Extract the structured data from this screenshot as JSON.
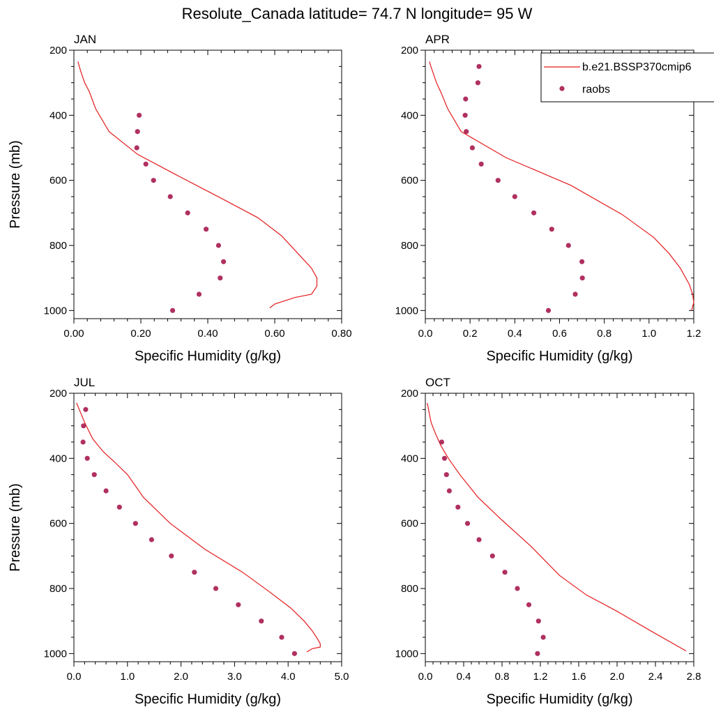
{
  "title": "Resolute_Canada  latitude= 74.7 N longitude= 95 W",
  "legend": {
    "model_label": "b.e21.BSSP370cmip6",
    "obs_label": "raobs",
    "model_color": "#e41a1c",
    "obs_color": "#b03060"
  },
  "chart_data": [
    {
      "type": "line",
      "panel": "JAN",
      "xlabel": "Specific Humidity (g/kg)",
      "ylabel": "Pressure (mb)",
      "xlim": [
        0,
        0.8
      ],
      "ylim": [
        200,
        1025
      ],
      "y_reversed": true,
      "xticks": [
        0,
        0.2,
        0.4,
        0.6,
        0.8
      ],
      "xtick_labels": [
        "0.00",
        "0.20",
        "0.40",
        "0.60",
        "0.80"
      ],
      "yticks": [
        200,
        400,
        600,
        800,
        1000
      ],
      "ytick_labels": [
        "200",
        "400",
        "600",
        "800",
        "1000"
      ],
      "series": [
        {
          "name": "b.e21.BSSP370cmip6",
          "kind": "line",
          "x": [
            0.012,
            0.016,
            0.022,
            0.032,
            0.045,
            0.065,
            0.105,
            0.19,
            0.3,
            0.44,
            0.55,
            0.62,
            0.665,
            0.71,
            0.726,
            0.726,
            0.71,
            0.66,
            0.6,
            0.585
          ],
          "y": [
            235,
            250,
            270,
            300,
            325,
            380,
            450,
            520,
            580,
            655,
            715,
            770,
            820,
            870,
            900,
            925,
            950,
            960,
            980,
            992
          ]
        },
        {
          "name": "raobs",
          "kind": "scatter",
          "x": [
            0.195,
            0.19,
            0.188,
            0.215,
            0.238,
            0.288,
            0.34,
            0.395,
            0.432,
            0.447,
            0.437,
            0.374,
            0.295
          ],
          "y": [
            400,
            450,
            500,
            550,
            600,
            650,
            700,
            750,
            800,
            850,
            900,
            950,
            1000
          ]
        }
      ]
    },
    {
      "type": "line",
      "panel": "APR",
      "xlabel": "Specific Humidity (g/kg)",
      "ylabel": "",
      "xlim": [
        0,
        1.2
      ],
      "ylim": [
        200,
        1025
      ],
      "y_reversed": true,
      "xticks": [
        0,
        0.2,
        0.4,
        0.6,
        0.8,
        1.0,
        1.2
      ],
      "xtick_labels": [
        "0.0",
        "0.2",
        "0.4",
        "0.6",
        "0.8",
        "1.0",
        "1.2"
      ],
      "yticks": [
        200,
        400,
        600,
        800,
        1000
      ],
      "ytick_labels": [
        "200",
        "400",
        "600",
        "800",
        "1000"
      ],
      "series": [
        {
          "name": "b.e21.BSSP370cmip6",
          "kind": "line",
          "x": [
            0.018,
            0.025,
            0.035,
            0.05,
            0.07,
            0.1,
            0.16,
            0.36,
            0.65,
            0.88,
            1.02,
            1.09,
            1.14,
            1.18,
            1.195,
            1.2,
            1.19
          ],
          "y": [
            235,
            250,
            270,
            300,
            330,
            380,
            450,
            530,
            615,
            705,
            775,
            825,
            870,
            920,
            950,
            975,
            1000
          ]
        },
        {
          "name": "raobs",
          "kind": "scatter",
          "x": [
            0.24,
            0.235,
            0.18,
            0.178,
            0.183,
            0.21,
            0.25,
            0.325,
            0.4,
            0.485,
            0.565,
            0.64,
            0.7,
            0.702,
            0.67,
            0.55
          ],
          "y": [
            250,
            300,
            350,
            400,
            450,
            500,
            550,
            600,
            650,
            700,
            750,
            800,
            850,
            900,
            950,
            1000
          ]
        }
      ]
    },
    {
      "type": "line",
      "panel": "JUL",
      "xlabel": "Specific Humidity (g/kg)",
      "ylabel": "Pressure (mb)",
      "xlim": [
        0,
        5.0
      ],
      "ylim": [
        200,
        1025
      ],
      "y_reversed": true,
      "xticks": [
        0,
        1,
        2,
        3,
        4,
        5
      ],
      "xtick_labels": [
        "0.0",
        "1.0",
        "2.0",
        "3.0",
        "4.0",
        "5.0"
      ],
      "yticks": [
        200,
        400,
        600,
        800,
        1000
      ],
      "ytick_labels": [
        "200",
        "400",
        "600",
        "800",
        "1000"
      ],
      "series": [
        {
          "name": "b.e21.BSSP370cmip6",
          "kind": "line",
          "x": [
            0.05,
            0.1,
            0.2,
            0.35,
            0.55,
            0.75,
            1.0,
            1.3,
            1.8,
            2.45,
            3.15,
            3.65,
            4.05,
            4.3,
            4.45,
            4.55,
            4.6,
            4.6,
            4.45,
            4.35
          ],
          "y": [
            230,
            250,
            290,
            340,
            380,
            410,
            450,
            520,
            600,
            680,
            750,
            810,
            860,
            900,
            930,
            955,
            970,
            980,
            985,
            995
          ]
        },
        {
          "name": "raobs",
          "kind": "scatter",
          "x": [
            0.22,
            0.18,
            0.17,
            0.25,
            0.38,
            0.6,
            0.85,
            1.15,
            1.45,
            1.82,
            2.25,
            2.65,
            3.07,
            3.5,
            3.88,
            4.12
          ],
          "y": [
            250,
            300,
            350,
            400,
            450,
            500,
            550,
            600,
            650,
            700,
            750,
            800,
            850,
            900,
            950,
            1000
          ]
        }
      ]
    },
    {
      "type": "line",
      "panel": "OCT",
      "xlabel": "Specific Humidity (g/kg)",
      "ylabel": "",
      "xlim": [
        0,
        2.8
      ],
      "ylim": [
        200,
        1025
      ],
      "y_reversed": true,
      "xticks": [
        0,
        0.4,
        0.8,
        1.2,
        1.6,
        2.0,
        2.4,
        2.8
      ],
      "xtick_labels": [
        "0.0",
        "0.4",
        "0.8",
        "1.2",
        "1.6",
        "2.0",
        "2.4",
        "2.8"
      ],
      "yticks": [
        200,
        400,
        600,
        800,
        1000
      ],
      "ytick_labels": [
        "200",
        "400",
        "600",
        "800",
        "1000"
      ],
      "series": [
        {
          "name": "b.e21.BSSP370cmip6",
          "kind": "line",
          "x": [
            0.02,
            0.04,
            0.06,
            0.1,
            0.16,
            0.24,
            0.36,
            0.55,
            0.8,
            1.1,
            1.4,
            1.68,
            2.0,
            2.35,
            2.72
          ],
          "y": [
            230,
            260,
            290,
            320,
            360,
            400,
            450,
            520,
            590,
            670,
            760,
            820,
            870,
            930,
            992
          ]
        },
        {
          "name": "raobs",
          "kind": "scatter",
          "x": [
            0.17,
            0.2,
            0.22,
            0.25,
            0.34,
            0.44,
            0.56,
            0.7,
            0.83,
            0.96,
            1.08,
            1.18,
            1.23,
            1.17
          ],
          "y": [
            350,
            400,
            450,
            500,
            550,
            600,
            650,
            700,
            750,
            800,
            850,
            900,
            950,
            1000
          ]
        }
      ]
    }
  ]
}
